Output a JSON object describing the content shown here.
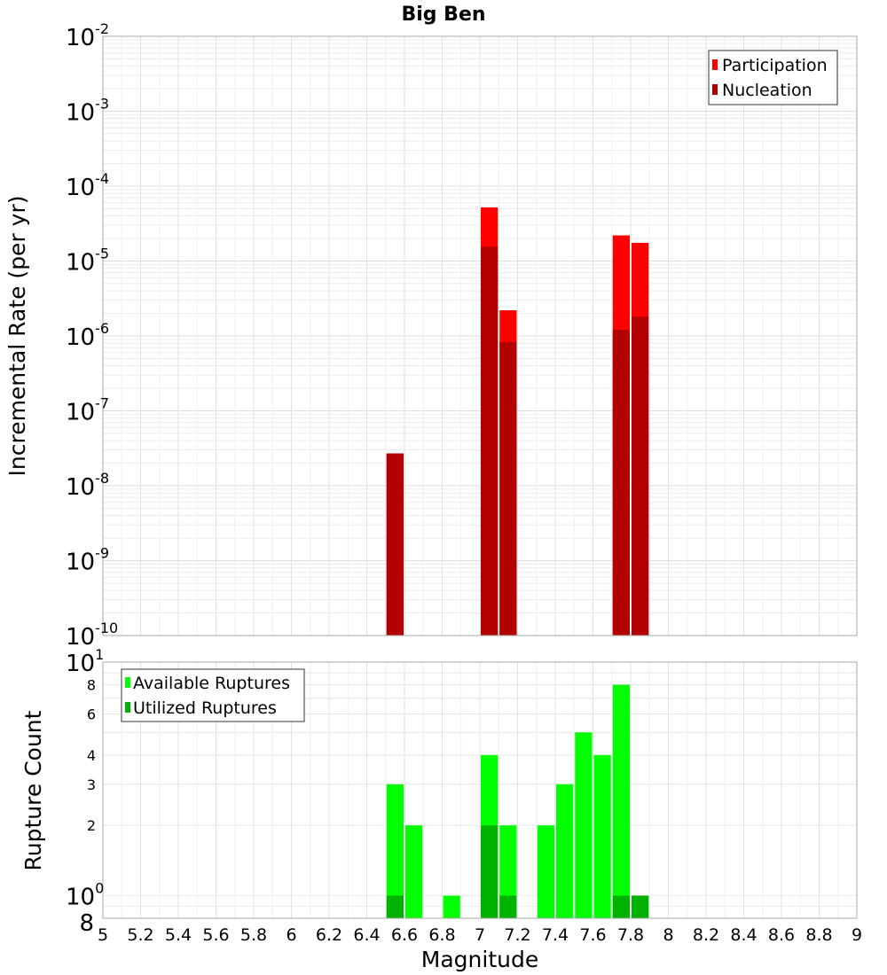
{
  "chart_data": [
    {
      "type": "bar",
      "title": "Big Ben",
      "xlabel": "",
      "ylabel": "Incremental Rate (per yr)",
      "yscale": "log",
      "xlim": [
        5,
        9
      ],
      "ylim": [
        1e-10,
        0.01
      ],
      "y_tick_labels": [
        {
          "base": "10",
          "exp": "-10"
        },
        {
          "base": "10",
          "exp": "-9"
        },
        {
          "base": "10",
          "exp": "-8"
        },
        {
          "base": "10",
          "exp": "-7"
        },
        {
          "base": "10",
          "exp": "-6"
        },
        {
          "base": "10",
          "exp": "-5"
        },
        {
          "base": "10",
          "exp": "-4"
        },
        {
          "base": "10",
          "exp": "-3"
        },
        {
          "base": "10",
          "exp": "-2"
        }
      ],
      "grid": true,
      "legend_position": "top-right",
      "colors": {
        "Participation": "#ff0000",
        "Nucleation": "#b20000"
      },
      "series": [
        {
          "name": "Participation",
          "x": [
            6.55,
            7.05,
            7.15,
            7.75,
            7.85
          ],
          "values": [
            2.7e-08,
            5.2e-05,
            2.2e-06,
            2.2e-05,
            1.75e-05
          ]
        },
        {
          "name": "Nucleation",
          "x": [
            6.55,
            7.05,
            7.15,
            7.75,
            7.85
          ],
          "values": [
            2.7e-08,
            1.55e-05,
            8.3e-07,
            1.2e-06,
            1.8e-06
          ]
        }
      ]
    },
    {
      "type": "bar",
      "xlabel": "Magnitude",
      "ylabel": "Rupture Count",
      "yscale": "log",
      "xlim": [
        5,
        9
      ],
      "ylim": [
        0.8,
        10
      ],
      "x_tick_labels": [
        "5",
        "5.2",
        "5.4",
        "5.6",
        "5.8",
        "6",
        "6.2",
        "6.4",
        "6.6",
        "6.8",
        "7",
        "7.2",
        "7.4",
        "7.6",
        "7.8",
        "8",
        "8.2",
        "8.4",
        "8.6",
        "8.8",
        "9"
      ],
      "y_tick_labels": [
        {
          "base": "10",
          "exp": "0"
        },
        {
          "base": "10",
          "exp": "1"
        }
      ],
      "y_minor_tick_labels": [
        {
          "label": "8",
          "value": 0.8
        },
        {
          "label": "2",
          "value": 2
        },
        {
          "label": "3",
          "value": 3
        },
        {
          "label": "4",
          "value": 4
        },
        {
          "label": "6",
          "value": 6
        },
        {
          "label": "8",
          "value": 8
        }
      ],
      "grid": true,
      "legend_position": "top-left",
      "colors": {
        "Available Ruptures": "#00ff00",
        "Utilized Ruptures": "#00b200"
      },
      "series": [
        {
          "name": "Available Ruptures",
          "x": [
            6.55,
            6.65,
            6.85,
            7.05,
            7.15,
            7.35,
            7.45,
            7.55,
            7.65,
            7.75,
            7.85
          ],
          "values": [
            3,
            2,
            1,
            4,
            2,
            2,
            3,
            5,
            4,
            8,
            1
          ]
        },
        {
          "name": "Utilized Ruptures",
          "x": [
            6.55,
            7.05,
            7.15,
            7.75,
            7.85
          ],
          "values": [
            1,
            2,
            1,
            1,
            1
          ]
        }
      ]
    }
  ]
}
